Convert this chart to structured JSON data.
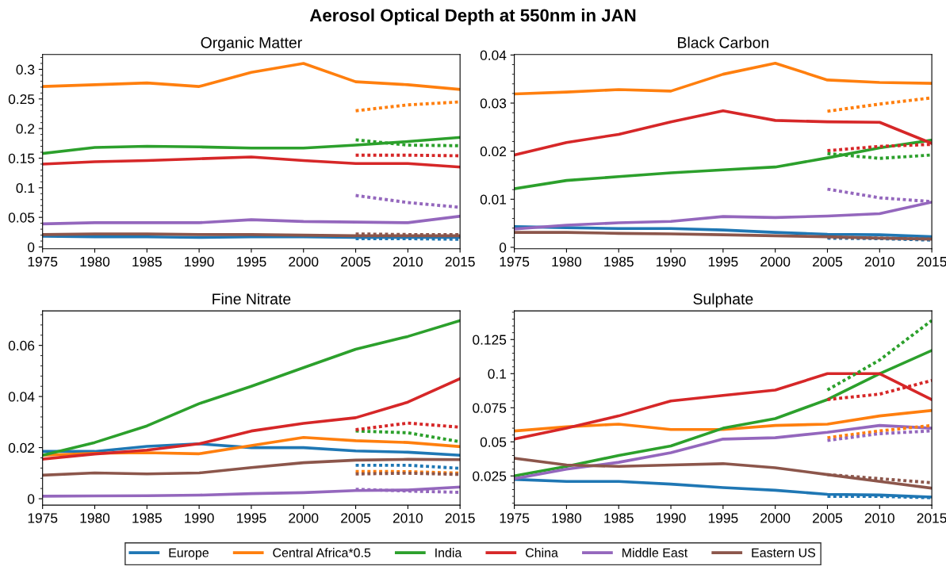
{
  "chart_data": [
    {
      "type": "line",
      "title": "Organic Matter",
      "annotations": [
        "Aerosol Optical Depth at 550nm in JAN"
      ],
      "legend": "bottom",
      "x": [
        1975,
        1980,
        1985,
        1990,
        1995,
        2000,
        2005,
        2010,
        2015
      ],
      "xlim": [
        1975,
        2015
      ],
      "xticks": [
        1975,
        1980,
        1985,
        1990,
        1995,
        2000,
        2005,
        2010,
        2015
      ],
      "ylim": [
        -0.003,
        0.325
      ],
      "yticks": [
        0,
        0.05,
        0.1,
        0.15,
        0.2,
        0.25,
        0.3
      ],
      "series": [
        {
          "name": "Europe",
          "color": "#1f77b4",
          "line_style": "solid",
          "values": [
            0.018,
            0.017,
            0.017,
            0.016,
            0.017,
            0.017,
            0.016,
            0.016,
            0.016
          ]
        },
        {
          "name": "Central Africa*0.5",
          "color": "#ff7f0e",
          "line_style": "solid",
          "values": [
            0.271,
            0.274,
            0.277,
            0.271,
            0.295,
            0.31,
            0.279,
            0.274,
            0.266
          ]
        },
        {
          "name": "India",
          "color": "#2ca02c",
          "line_style": "solid",
          "values": [
            0.158,
            0.168,
            0.17,
            0.169,
            0.167,
            0.167,
            0.172,
            0.178,
            0.185
          ]
        },
        {
          "name": "China",
          "color": "#d62728",
          "line_style": "solid",
          "values": [
            0.14,
            0.144,
            0.146,
            0.149,
            0.152,
            0.146,
            0.141,
            0.141,
            0.135
          ]
        },
        {
          "name": "Middle East",
          "color": "#9467bd",
          "line_style": "solid",
          "values": [
            0.039,
            0.041,
            0.041,
            0.041,
            0.046,
            0.043,
            0.042,
            0.041,
            0.052
          ]
        },
        {
          "name": "Eastern US",
          "color": "#8c564b",
          "line_style": "solid",
          "values": [
            0.021,
            0.022,
            0.022,
            0.021,
            0.021,
            0.02,
            0.019,
            0.019,
            0.019
          ]
        },
        {
          "color": "#1f77b4",
          "line_style": "dotted",
          "x": [
            2005,
            2010,
            2015
          ],
          "values": [
            0.014,
            0.014,
            0.013
          ]
        },
        {
          "color": "#ff7f0e",
          "line_style": "dotted",
          "x": [
            2005,
            2010,
            2015
          ],
          "values": [
            0.23,
            0.24,
            0.245
          ]
        },
        {
          "color": "#2ca02c",
          "line_style": "dotted",
          "x": [
            2005,
            2010,
            2015
          ],
          "values": [
            0.181,
            0.172,
            0.171
          ]
        },
        {
          "color": "#d62728",
          "line_style": "dotted",
          "x": [
            2005,
            2010,
            2015
          ],
          "values": [
            0.155,
            0.155,
            0.154
          ]
        },
        {
          "color": "#9467bd",
          "line_style": "dotted",
          "x": [
            2005,
            2010,
            2015
          ],
          "values": [
            0.087,
            0.075,
            0.067
          ]
        },
        {
          "color": "#8c564b",
          "line_style": "dotted",
          "x": [
            2005,
            2010,
            2015
          ],
          "values": [
            0.022,
            0.021,
            0.021
          ]
        }
      ]
    },
    {
      "type": "line",
      "title": "Black Carbon",
      "x": [
        1975,
        1980,
        1985,
        1990,
        1995,
        2000,
        2005,
        2010,
        2015
      ],
      "xlim": [
        1975,
        2015
      ],
      "xticks": [
        1975,
        1980,
        1985,
        1990,
        1995,
        2000,
        2005,
        2010,
        2015
      ],
      "ylim": [
        -0.0003,
        0.0401
      ],
      "yticks": [
        0,
        0.01,
        0.02,
        0.03,
        0.04
      ],
      "series": [
        {
          "name": "Europe",
          "color": "#1f77b4",
          "line_style": "solid",
          "values": [
            0.0043,
            0.0041,
            0.0039,
            0.0039,
            0.0036,
            0.0031,
            0.0027,
            0.0026,
            0.0022
          ]
        },
        {
          "name": "Central Africa*0.5",
          "color": "#ff7f0e",
          "line_style": "solid",
          "values": [
            0.0319,
            0.0323,
            0.0328,
            0.0325,
            0.036,
            0.0383,
            0.0348,
            0.0343,
            0.0341
          ]
        },
        {
          "name": "India",
          "color": "#2ca02c",
          "line_style": "solid",
          "values": [
            0.0122,
            0.0139,
            0.0147,
            0.0155,
            0.0161,
            0.0167,
            0.0186,
            0.0207,
            0.0223
          ]
        },
        {
          "name": "China",
          "color": "#d62728",
          "line_style": "solid",
          "values": [
            0.0192,
            0.0218,
            0.0235,
            0.0261,
            0.0284,
            0.0264,
            0.0261,
            0.026,
            0.0216
          ]
        },
        {
          "name": "Middle East",
          "color": "#9467bd",
          "line_style": "solid",
          "values": [
            0.0038,
            0.0046,
            0.0051,
            0.0054,
            0.0064,
            0.0062,
            0.0065,
            0.007,
            0.0094
          ]
        },
        {
          "name": "Eastern US",
          "color": "#8c564b",
          "line_style": "solid",
          "values": [
            0.0031,
            0.0031,
            0.0029,
            0.0028,
            0.0026,
            0.0024,
            0.0022,
            0.0019,
            0.0017
          ]
        },
        {
          "color": "#1f77b4",
          "line_style": "dotted",
          "x": [
            2005,
            2010,
            2015
          ],
          "values": [
            0.0019,
            0.0018,
            0.0015
          ]
        },
        {
          "color": "#ff7f0e",
          "line_style": "dotted",
          "x": [
            2005,
            2010,
            2015
          ],
          "values": [
            0.0283,
            0.0298,
            0.0311
          ]
        },
        {
          "color": "#2ca02c",
          "line_style": "dotted",
          "x": [
            2005,
            2010,
            2015
          ],
          "values": [
            0.0195,
            0.0185,
            0.0192
          ]
        },
        {
          "color": "#d62728",
          "line_style": "dotted",
          "x": [
            2005,
            2010,
            2015
          ],
          "values": [
            0.0201,
            0.021,
            0.0214
          ]
        },
        {
          "color": "#9467bd",
          "line_style": "dotted",
          "x": [
            2005,
            2010,
            2015
          ],
          "values": [
            0.0121,
            0.0103,
            0.0095
          ]
        },
        {
          "color": "#8c564b",
          "line_style": "dotted",
          "x": [
            2005,
            2010,
            2015
          ],
          "values": [
            0.0021,
            0.0019,
            0.0017
          ]
        }
      ]
    },
    {
      "type": "line",
      "title": "Fine Nitrate",
      "x": [
        1975,
        1980,
        1985,
        1990,
        1995,
        2000,
        2005,
        2010,
        2015
      ],
      "xlim": [
        1975,
        2015
      ],
      "xticks": [
        1975,
        1980,
        1985,
        1990,
        1995,
        2000,
        2005,
        2010,
        2015
      ],
      "ylim": [
        -0.0025,
        0.0735
      ],
      "yticks": [
        0,
        0.02,
        0.04,
        0.06
      ],
      "series": [
        {
          "name": "Europe",
          "color": "#1f77b4",
          "line_style": "solid",
          "values": [
            0.0185,
            0.0185,
            0.0205,
            0.0215,
            0.02,
            0.02,
            0.0187,
            0.0182,
            0.017
          ]
        },
        {
          "name": "Central Africa*0.5",
          "color": "#ff7f0e",
          "line_style": "solid",
          "values": [
            0.017,
            0.0178,
            0.018,
            0.0176,
            0.0208,
            0.024,
            0.0227,
            0.022,
            0.0204
          ]
        },
        {
          "name": "India",
          "color": "#2ca02c",
          "line_style": "solid",
          "values": [
            0.017,
            0.022,
            0.0285,
            0.0372,
            0.044,
            0.0513,
            0.0585,
            0.0635,
            0.0697
          ]
        },
        {
          "name": "China",
          "color": "#d62728",
          "line_style": "solid",
          "values": [
            0.0155,
            0.0175,
            0.019,
            0.0215,
            0.0265,
            0.0295,
            0.0317,
            0.0378,
            0.047
          ]
        },
        {
          "name": "Middle East",
          "color": "#9467bd",
          "line_style": "solid",
          "values": [
            0.001,
            0.0011,
            0.0012,
            0.0014,
            0.002,
            0.0024,
            0.0032,
            0.0034,
            0.0046
          ]
        },
        {
          "name": "Eastern US",
          "color": "#8c564b",
          "line_style": "solid",
          "values": [
            0.0092,
            0.0101,
            0.0097,
            0.0101,
            0.0122,
            0.0141,
            0.0151,
            0.0154,
            0.0153
          ]
        },
        {
          "color": "#1f77b4",
          "line_style": "dotted",
          "x": [
            2005,
            2010,
            2015
          ],
          "values": [
            0.0131,
            0.0131,
            0.0119
          ]
        },
        {
          "color": "#ff7f0e",
          "line_style": "dotted",
          "x": [
            2005,
            2010,
            2015
          ],
          "values": [
            0.0107,
            0.0106,
            0.01
          ]
        },
        {
          "color": "#2ca02c",
          "line_style": "dotted",
          "x": [
            2005,
            2010,
            2015
          ],
          "values": [
            0.0265,
            0.0258,
            0.0223
          ]
        },
        {
          "color": "#d62728",
          "line_style": "dotted",
          "x": [
            2005,
            2010,
            2015
          ],
          "values": [
            0.027,
            0.0296,
            0.028
          ]
        },
        {
          "color": "#9467bd",
          "line_style": "dotted",
          "x": [
            2005,
            2010,
            2015
          ],
          "values": [
            0.0037,
            0.003,
            0.0025
          ]
        },
        {
          "color": "#8c564b",
          "line_style": "dotted",
          "x": [
            2005,
            2010,
            2015
          ],
          "values": [
            0.0097,
            0.01,
            0.0095
          ]
        }
      ]
    },
    {
      "type": "line",
      "title": "Sulphate",
      "x": [
        1975,
        1980,
        1985,
        1990,
        1995,
        2000,
        2005,
        2010,
        2015
      ],
      "xlim": [
        1975,
        2015
      ],
      "xticks": [
        1975,
        1980,
        1985,
        1990,
        1995,
        2000,
        2005,
        2010,
        2015
      ],
      "ylim": [
        0.0036,
        0.146
      ],
      "yticks": [
        0.025,
        0.05,
        0.075,
        0.1,
        0.125
      ],
      "series": [
        {
          "name": "Europe",
          "color": "#1f77b4",
          "line_style": "solid",
          "values": [
            0.0225,
            0.021,
            0.021,
            0.019,
            0.0165,
            0.0145,
            0.0115,
            0.011,
            0.0095
          ]
        },
        {
          "name": "Central Africa*0.5",
          "color": "#ff7f0e",
          "line_style": "solid",
          "values": [
            0.058,
            0.061,
            0.063,
            0.059,
            0.059,
            0.062,
            0.063,
            0.069,
            0.073
          ]
        },
        {
          "name": "India",
          "color": "#2ca02c",
          "line_style": "solid",
          "values": [
            0.025,
            0.032,
            0.04,
            0.047,
            0.06,
            0.067,
            0.081,
            0.1,
            0.117
          ]
        },
        {
          "name": "China",
          "color": "#d62728",
          "line_style": "solid",
          "values": [
            0.052,
            0.06,
            0.069,
            0.08,
            0.084,
            0.088,
            0.1,
            0.1,
            0.081
          ]
        },
        {
          "name": "Middle East",
          "color": "#9467bd",
          "line_style": "solid",
          "values": [
            0.023,
            0.03,
            0.035,
            0.042,
            0.052,
            0.053,
            0.057,
            0.062,
            0.06
          ]
        },
        {
          "name": "Eastern US",
          "color": "#8c564b",
          "line_style": "solid",
          "values": [
            0.038,
            0.033,
            0.032,
            0.033,
            0.034,
            0.031,
            0.026,
            0.021,
            0.016
          ]
        },
        {
          "color": "#1f77b4",
          "line_style": "dotted",
          "x": [
            2005,
            2010,
            2015
          ],
          "values": [
            0.01,
            0.01,
            0.009
          ]
        },
        {
          "color": "#ff7f0e",
          "line_style": "dotted",
          "x": [
            2005,
            2010,
            2015
          ],
          "values": [
            0.053,
            0.058,
            0.062
          ]
        },
        {
          "color": "#2ca02c",
          "line_style": "dotted",
          "x": [
            2005,
            2010,
            2015
          ],
          "values": [
            0.088,
            0.11,
            0.139
          ]
        },
        {
          "color": "#d62728",
          "line_style": "dotted",
          "x": [
            2005,
            2010,
            2015
          ],
          "values": [
            0.081,
            0.085,
            0.095
          ]
        },
        {
          "color": "#9467bd",
          "line_style": "dotted",
          "x": [
            2005,
            2010,
            2015
          ],
          "values": [
            0.051,
            0.056,
            0.058
          ]
        },
        {
          "color": "#8c564b",
          "line_style": "dotted",
          "x": [
            2005,
            2010,
            2015
          ],
          "values": [
            0.026,
            0.023,
            0.02
          ]
        }
      ]
    }
  ]
}
